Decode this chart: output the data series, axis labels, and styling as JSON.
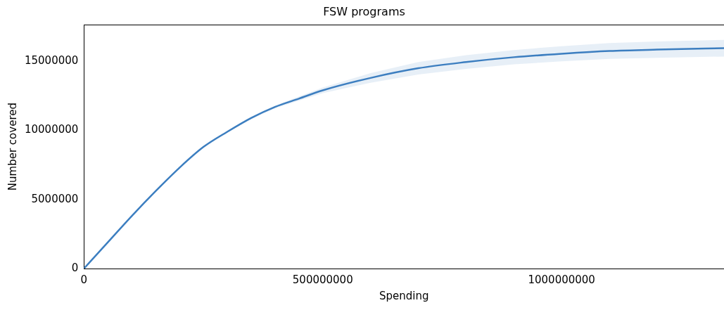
{
  "chart_data": {
    "type": "line",
    "title": "FSW programs",
    "xlabel": "Spending",
    "ylabel": "Number covered",
    "x": [
      0,
      50000000,
      100000000,
      150000000,
      200000000,
      250000000,
      300000000,
      350000000,
      400000000,
      450000000,
      500000000,
      600000000,
      700000000,
      800000000,
      900000000,
      1000000000,
      1100000000,
      1200000000,
      1340000000
    ],
    "series": [
      {
        "color": "#3d7fc1",
        "values": [
          0,
          1900000,
          3800000,
          5600000,
          7300000,
          8800000,
          9900000,
          10900000,
          11700000,
          12300000,
          12900000,
          13800000,
          14500000,
          14950000,
          15300000,
          15550000,
          15750000,
          15850000,
          15950000
        ],
        "lower": [
          0,
          1880000,
          3770000,
          5560000,
          7250000,
          8740000,
          9830000,
          10820000,
          11600000,
          12150000,
          12700000,
          13450000,
          14050000,
          14450000,
          14780000,
          15000000,
          15180000,
          15260000,
          15350000
        ],
        "upper": [
          0,
          1920000,
          3830000,
          5640000,
          7350000,
          8860000,
          9970000,
          10980000,
          11800000,
          12450000,
          13100000,
          14150000,
          14950000,
          15450000,
          15820000,
          16100000,
          16320000,
          16440000,
          16550000
        ]
      }
    ],
    "xlim": [
      0,
      1340000000
    ],
    "ylim": [
      0,
      17650000
    ],
    "xticks": [
      0,
      500000000,
      1000000000
    ],
    "yticks": [
      0,
      5000000,
      10000000,
      15000000
    ],
    "grid": false,
    "legend": false,
    "marker": "none",
    "line_style": "solid"
  }
}
